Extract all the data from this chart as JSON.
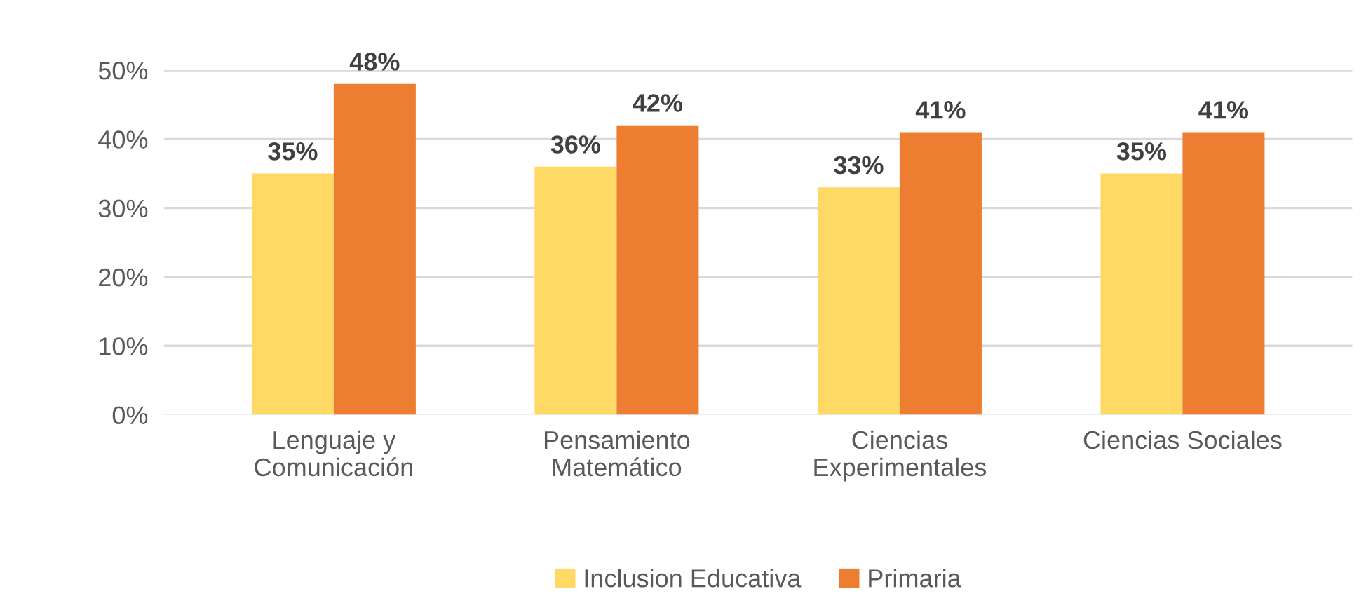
{
  "chart_data": {
    "type": "bar",
    "categories": [
      "Lenguaje y\nComunicación",
      "Pensamiento\nMatemático",
      "Ciencias\nExperimentales",
      "Ciencias Sociales"
    ],
    "series": [
      {
        "name": "Inclusion Educativa",
        "color": "#ffd966",
        "values": [
          35,
          36,
          33,
          35
        ],
        "value_labels": [
          "35%",
          "36%",
          "33%",
          "35%"
        ]
      },
      {
        "name": "Primaria",
        "color": "#ed7d31",
        "values": [
          48,
          42,
          41,
          41
        ],
        "value_labels": [
          "48%",
          "42%",
          "41%",
          "41%"
        ]
      }
    ],
    "ylim": [
      0,
      50
    ],
    "yticks": [
      {
        "value": 0,
        "label": "0%"
      },
      {
        "value": 10,
        "label": "10%"
      },
      {
        "value": 20,
        "label": "20%"
      },
      {
        "value": 30,
        "label": "30%"
      },
      {
        "value": 40,
        "label": "40%"
      },
      {
        "value": 50,
        "label": "50%"
      }
    ],
    "grid": "y",
    "legend": "bottom"
  }
}
